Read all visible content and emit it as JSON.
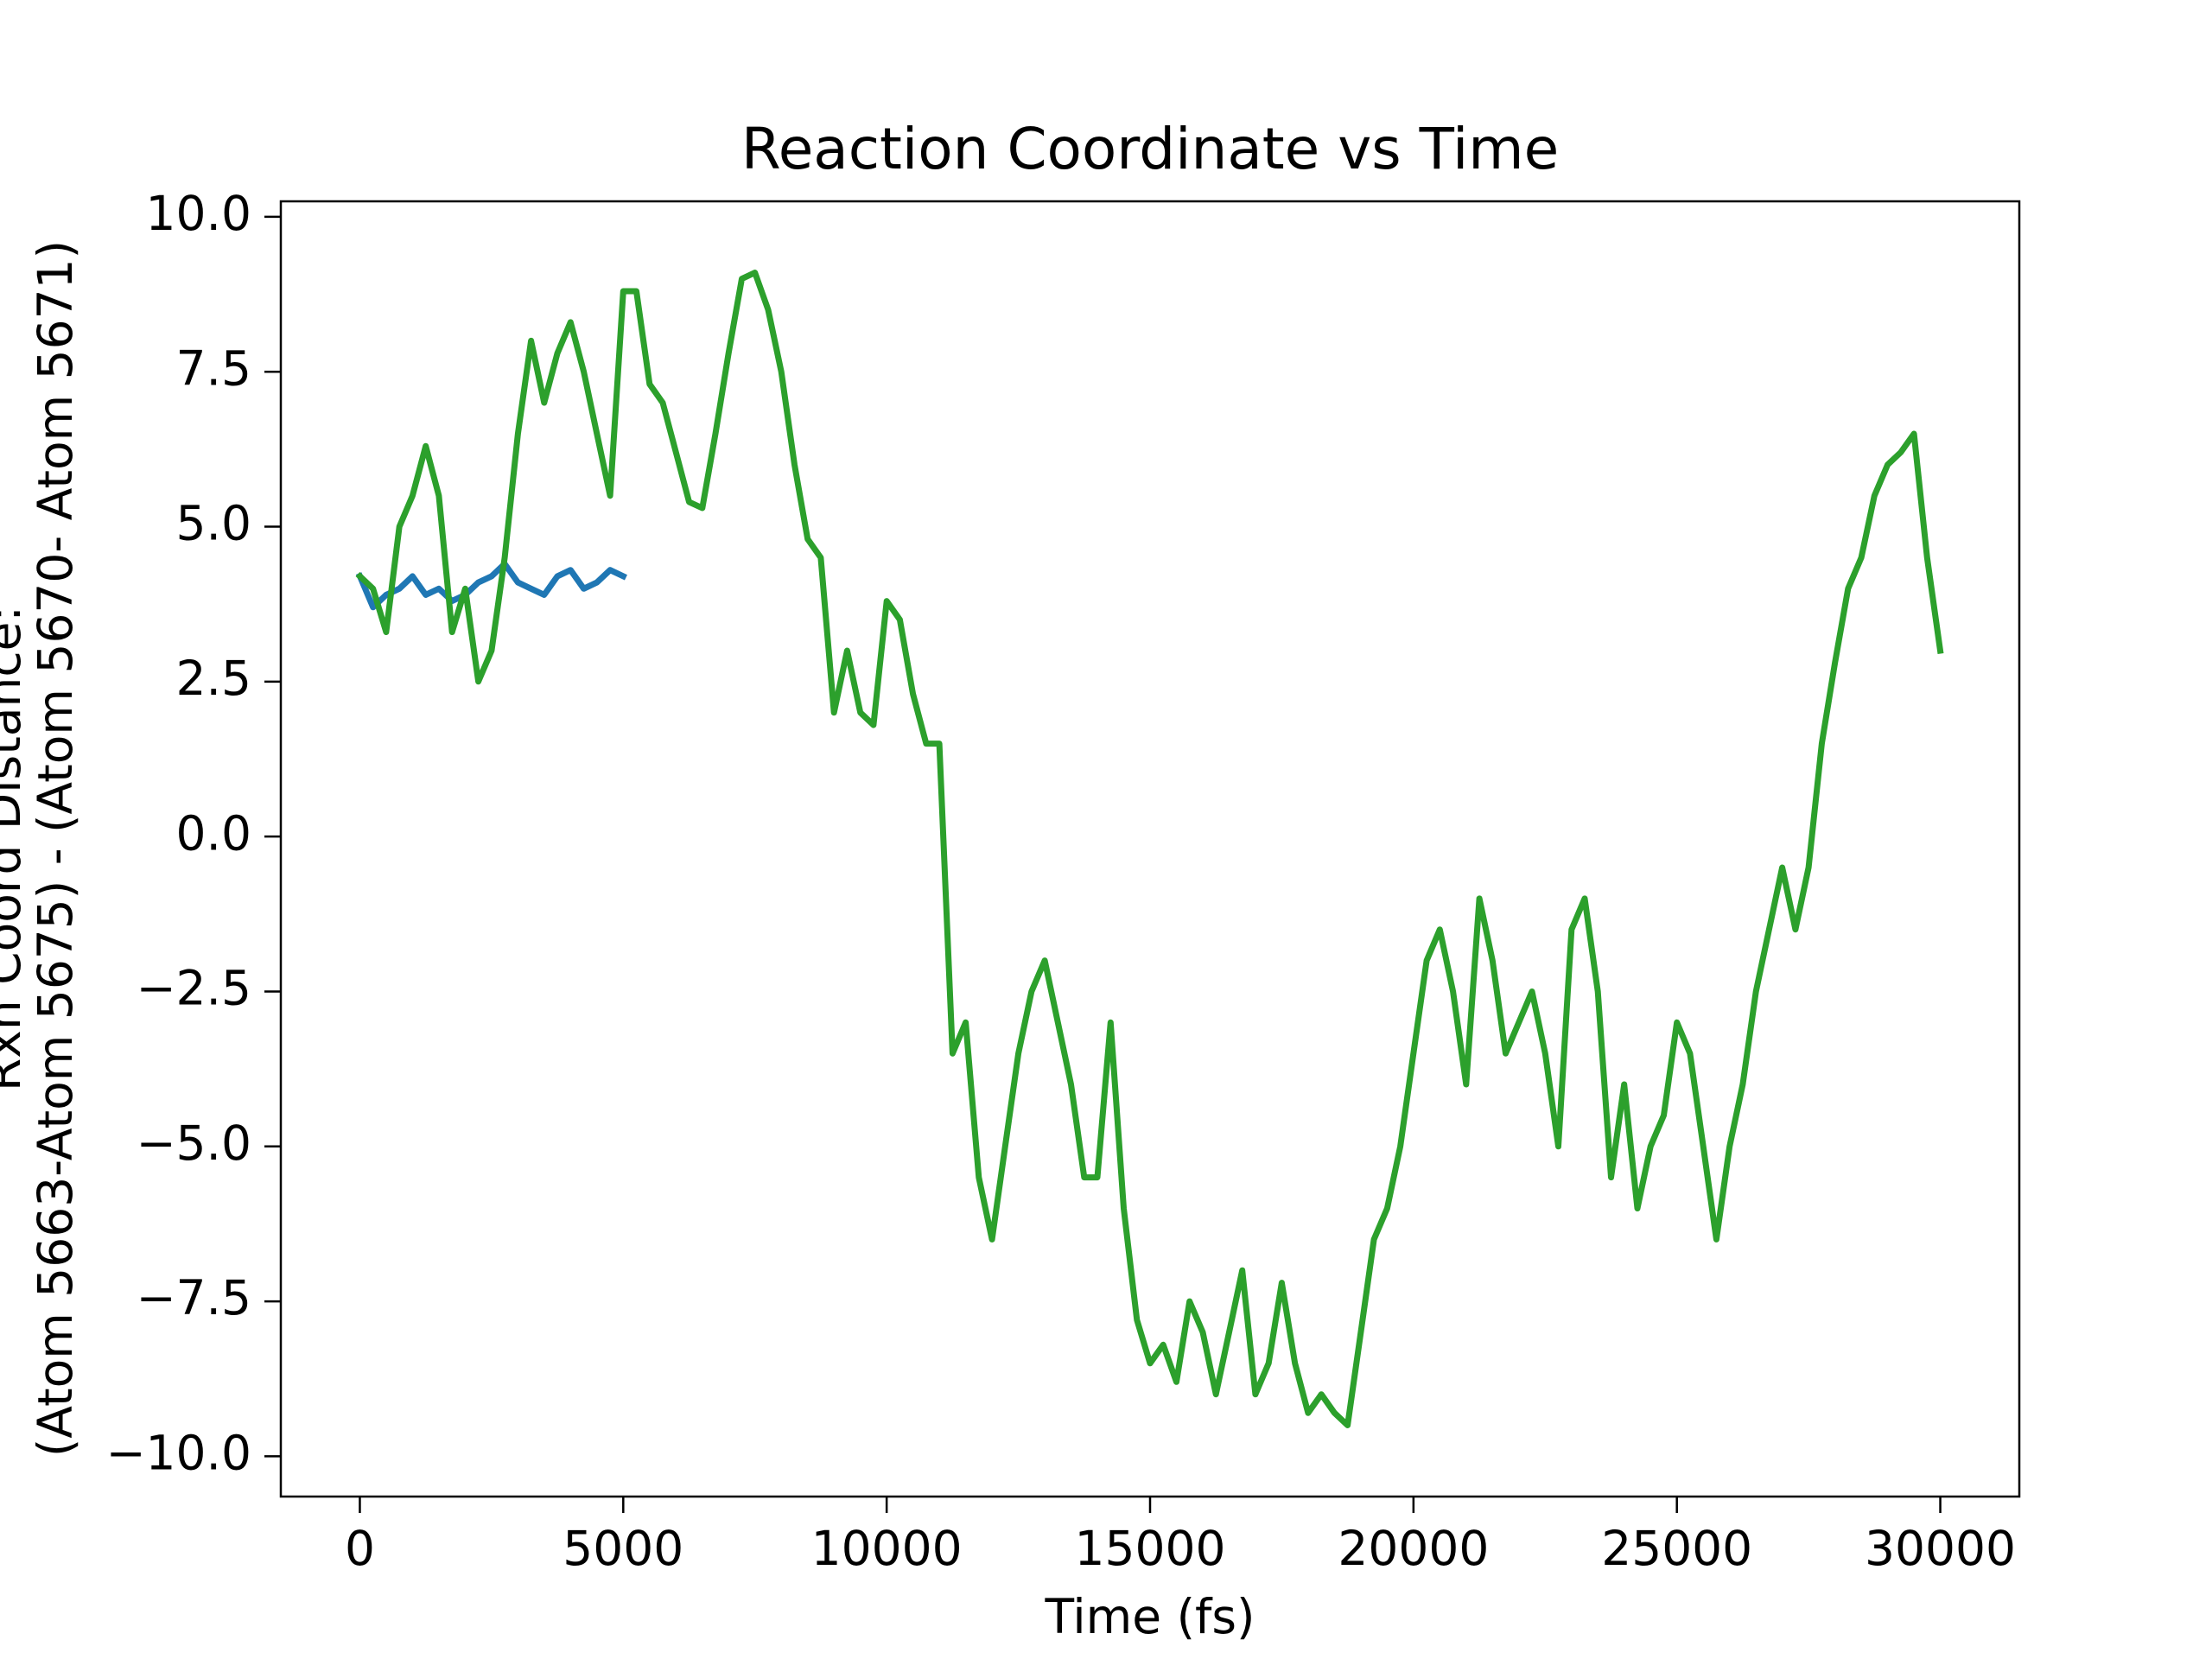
{
  "chart_data": {
    "type": "line",
    "title": "Reaction Coordinate vs Time",
    "x_label": "Time (fs)",
    "y_label": [
      "Rxn Coord Distance:",
      "(Atom 5663-Atom 5675) - (Atom 5670- Atom 5671)"
    ],
    "xlim": [
      -1500,
      31500
    ],
    "xticks": [
      0,
      5000,
      10000,
      15000,
      20000,
      25000,
      30000
    ],
    "ylim": [
      -10.65,
      10.25
    ],
    "yticks": [
      {
        "value": 10,
        "label": "10.0"
      },
      7.5,
      {
        "value": 5,
        "label": "5.0"
      },
      2.5,
      {
        "value": 0,
        "label": "0.0"
      },
      {
        "value": -2.5,
        "label": "−2.5"
      },
      {
        "value": -5,
        "label": "−5.0"
      },
      {
        "value": -7.5,
        "label": "−7.5"
      },
      {
        "value": -10,
        "label": "−10.0"
      }
    ],
    "series": [
      {
        "color": "#1f77b4",
        "x": [
          0,
          250,
          500,
          750,
          1000,
          1250,
          1500,
          1750,
          2000,
          2250,
          2500,
          2750,
          3000,
          3250,
          3500,
          3750,
          4000,
          4250,
          4500,
          4750,
          5000
        ],
        "values": [
          4.2,
          3.7,
          3.9,
          4.0,
          4.2,
          3.9,
          4.0,
          3.8,
          3.9,
          4.1,
          4.2,
          4.4,
          4.1,
          4.0,
          3.9,
          4.2,
          4.3,
          4.0,
          4.1,
          4.3,
          4.2
        ]
      },
      {
        "color": "#2ca02c",
        "x": [
          0,
          250,
          500,
          750,
          1000,
          1250,
          1500,
          1750,
          2000,
          2250,
          2500,
          2750,
          3000,
          3250,
          3500,
          3750,
          4000,
          4250,
          4500,
          4750,
          5000,
          5250,
          5500,
          5750,
          6000,
          6250,
          6500,
          6750,
          7000,
          7250,
          7500,
          7750,
          8000,
          8250,
          8500,
          8750,
          9000,
          9250,
          9500,
          9750,
          10000,
          10250,
          10500,
          10750,
          11000,
          11250,
          11500,
          11750,
          12000,
          12250,
          12500,
          12750,
          13000,
          13250,
          13500,
          13750,
          14000,
          14250,
          14500,
          14750,
          15000,
          15250,
          15500,
          15750,
          16000,
          16250,
          16500,
          16750,
          17000,
          17250,
          17500,
          17750,
          18000,
          18250,
          18500,
          18750,
          19000,
          19250,
          19500,
          19750,
          20000,
          20250,
          20500,
          20750,
          21000,
          21250,
          21500,
          21750,
          22000,
          22250,
          22500,
          22750,
          23000,
          23250,
          23500,
          23750,
          24000,
          24250,
          24500,
          24750,
          25000,
          25250,
          25500,
          25750,
          26000,
          26250,
          26500,
          26750,
          27000,
          27250,
          27500,
          27750,
          28000,
          28250,
          28500,
          28750,
          29000,
          29250,
          29500,
          29750,
          30000
        ],
        "values": [
          4.2,
          4.0,
          3.3,
          5.0,
          5.5,
          6.3,
          5.5,
          3.3,
          4.0,
          2.5,
          3.0,
          4.5,
          6.5,
          8.0,
          7.0,
          7.8,
          8.3,
          7.5,
          6.5,
          5.5,
          8.8,
          8.8,
          7.3,
          7.0,
          6.2,
          5.4,
          5.3,
          6.5,
          7.8,
          9.0,
          9.1,
          8.5,
          7.5,
          6.0,
          4.8,
          4.5,
          2.0,
          3.0,
          2.0,
          1.8,
          3.8,
          3.5,
          2.3,
          1.5,
          1.5,
          -3.5,
          -3.0,
          -5.5,
          -6.5,
          -5.0,
          -3.5,
          -2.5,
          -2.0,
          -3.0,
          -4.0,
          -5.5,
          -5.5,
          -3.0,
          -6.0,
          -7.8,
          -8.5,
          -8.2,
          -8.8,
          -7.5,
          -8.0,
          -9.0,
          -8.0,
          -7.0,
          -9.0,
          -8.5,
          -7.2,
          -8.5,
          -9.3,
          -9.0,
          -9.3,
          -9.5,
          -8.0,
          -6.5,
          -6.0,
          -5.0,
          -3.5,
          -2.0,
          -1.5,
          -2.5,
          -4.0,
          -1.0,
          -2.0,
          -3.5,
          -3.0,
          -2.5,
          -3.5,
          -5.0,
          -1.5,
          -1.0,
          -2.5,
          -5.5,
          -4.0,
          -6.0,
          -5.0,
          -4.5,
          -3.0,
          -3.5,
          -5.0,
          -6.5,
          -5.0,
          -4.0,
          -2.5,
          -1.5,
          -0.5,
          -1.5,
          -0.5,
          1.5,
          2.8,
          4.0,
          4.5,
          5.5,
          6.0,
          6.2,
          6.5,
          4.5,
          3.0
        ]
      }
    ]
  }
}
